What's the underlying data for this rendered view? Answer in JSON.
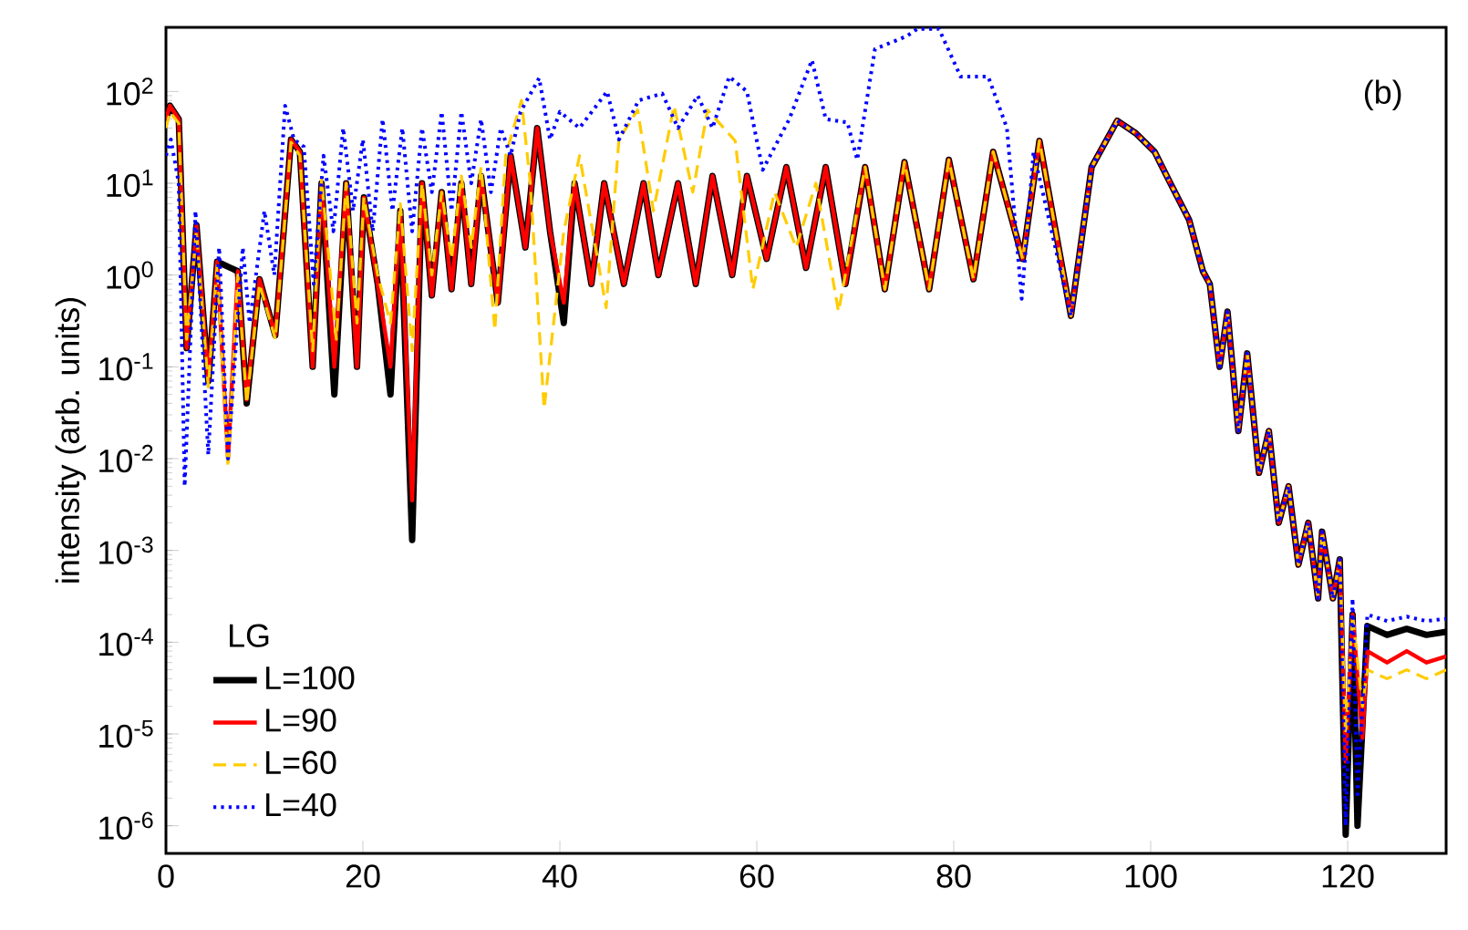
{
  "chart_data": {
    "type": "line",
    "ylabel": "intensity (arb. units)",
    "legend_title": "LG",
    "legend": "bottom left",
    "log": "y",
    "xlim": [
      0,
      130
    ],
    "xticks": [
      0,
      20,
      40,
      60,
      80,
      100,
      120
    ],
    "ylim": [
      5e-07,
      500
    ],
    "yticks": [
      {
        "value": 1e-06,
        "label": "10$^{-6}$"
      },
      {
        "value": 1e-05,
        "label": "10$^{-5}$"
      },
      {
        "value": 0.0001,
        "label": "10$^{-4}$"
      },
      {
        "value": 0.001,
        "label": "10$^{-3}$"
      },
      {
        "value": 0.01,
        "label": "10$^{-2}$"
      },
      {
        "value": 0.1,
        "label": "10$^{-1}$"
      },
      {
        "value": 1,
        "label": "10$^{0}$"
      },
      {
        "value": 10,
        "label": "10$^{1}$"
      },
      {
        "value": 100,
        "label": "10$^{2}$"
      }
    ],
    "annotations": [
      "(b)"
    ],
    "series": [
      {
        "name": "L=100",
        "color": "#000000",
        "line_style": "solid",
        "x": [
          0,
          0.4,
          1.3,
          2.1,
          3.1,
          4.3,
          5.2,
          6.3,
          7.3,
          8.2,
          9.5,
          11.1,
          12.7,
          13.6,
          14.9,
          15.8,
          17.1,
          18.3,
          19.4,
          20.1,
          21.5,
          22.8,
          23.8,
          25,
          26,
          27,
          28,
          29,
          30,
          31,
          32,
          33.7,
          35,
          36.5,
          37.7,
          39,
          40.4,
          41.5,
          43.2,
          44.5,
          46.5,
          48.5,
          50,
          52,
          53.8,
          55.5,
          57.5,
          59,
          61,
          63,
          65,
          67,
          69,
          71,
          73,
          75,
          77.5,
          79.5,
          82,
          84,
          87,
          88.7,
          91.9,
          94,
          96.6,
          98.5,
          100.4,
          102,
          103.9,
          105.3,
          106,
          107,
          107.8,
          108.9,
          109.8,
          111,
          112,
          113,
          114,
          115,
          116,
          117,
          117.4,
          118.5,
          119.2,
          119.8,
          120.5,
          121,
          122,
          124,
          126,
          128,
          130
        ],
        "values": [
          50,
          70,
          50,
          0.16,
          3.5,
          0.07,
          1.4,
          null,
          1.1,
          0.04,
          0.9,
          0.22,
          30,
          22,
          0.1,
          10,
          0.05,
          10,
          0.1,
          7,
          0.8,
          0.05,
          5,
          0.0013,
          10,
          0.6,
          8,
          0.7,
          10,
          0.8,
          12,
          0.5,
          20,
          2,
          40,
          3,
          0.3,
          10,
          0.8,
          10,
          0.8,
          10,
          1,
          10,
          0.8,
          12,
          1,
          12,
          1.5,
          15,
          1.2,
          15,
          0.8,
          15,
          0.7,
          17,
          0.7,
          18,
          0.9,
          22,
          1.5,
          29,
          0.36,
          15,
          48,
          35,
          22,
          10,
          4,
          1.1,
          0.8,
          0.1,
          0.4,
          0.02,
          0.14,
          0.007,
          0.02,
          0.002,
          0.005,
          0.0007,
          0.002,
          0.0003,
          0.0016,
          0.0003,
          0.0008,
          8e-07,
          0.0002,
          1e-06,
          0.00015,
          0.00012,
          0.00014,
          0.00012,
          0.00013
        ]
      },
      {
        "name": "L=90",
        "color": "#ff0000",
        "line_style": "solid",
        "x": [
          0,
          0.4,
          1.3,
          2.1,
          3.1,
          4.3,
          5.2,
          6.3,
          7.3,
          8.2,
          9.5,
          11.1,
          12.7,
          13.6,
          14.9,
          15.8,
          17.1,
          18.3,
          19.4,
          20.1,
          21.5,
          22.8,
          23.8,
          25,
          26,
          27,
          28,
          29,
          30,
          31,
          32,
          33.7,
          35,
          36.5,
          37.7,
          39,
          40.4,
          41.5,
          43.2,
          44.5,
          46.5,
          48.5,
          50,
          52,
          53.8,
          55.5,
          57.5,
          59,
          61,
          63,
          65,
          67,
          69,
          71,
          73,
          75,
          77.5,
          79.5,
          82,
          84,
          87,
          88.7,
          91.9,
          94,
          96.6,
          98.5,
          100.4,
          102,
          103.9,
          105.3,
          106,
          107,
          107.8,
          108.9,
          109.8,
          111,
          112,
          113,
          114,
          115,
          116,
          117,
          117.4,
          118.5,
          119.2,
          119.8,
          120.5,
          121.5,
          122,
          124,
          126,
          128,
          130
        ],
        "values": [
          50,
          70,
          50,
          0.16,
          3.5,
          0.07,
          1.4,
          0.01,
          1.1,
          0.044,
          0.9,
          0.22,
          30,
          22,
          0.1,
          10,
          0.1,
          10,
          0.1,
          7,
          0.8,
          0.1,
          5,
          0.0035,
          10,
          0.6,
          8,
          0.7,
          10,
          0.8,
          12,
          0.5,
          20,
          2,
          40,
          3,
          0.5,
          10,
          0.8,
          10,
          0.8,
          10,
          1,
          10,
          0.8,
          12,
          1,
          12,
          1.5,
          15,
          1.2,
          15,
          0.8,
          15,
          0.7,
          17,
          0.7,
          18,
          0.9,
          22,
          1.5,
          29,
          0.36,
          15,
          48,
          35,
          22,
          10,
          4,
          1.1,
          0.8,
          0.1,
          0.4,
          0.02,
          0.14,
          0.007,
          0.02,
          0.002,
          0.005,
          0.0007,
          0.002,
          0.0003,
          0.0016,
          0.0003,
          0.0008,
          5e-06,
          0.0002,
          9e-06,
          8e-05,
          6e-05,
          8e-05,
          6e-05,
          7e-05
        ]
      },
      {
        "name": "L=60",
        "color": "#ffcc00",
        "line_style": "dashed",
        "x": [
          0,
          0.4,
          1.3,
          2.1,
          3.1,
          4.3,
          5.2,
          6.3,
          7.3,
          8.2,
          9.5,
          11.1,
          12.7,
          13.6,
          14.9,
          15.8,
          17.3,
          18.3,
          19.4,
          20.1,
          21.5,
          22.8,
          23.8,
          25,
          26,
          27,
          28,
          29,
          30,
          31,
          32,
          33.4,
          34.5,
          36.1,
          37,
          38.4,
          40.4,
          42,
          44.7,
          46,
          47.9,
          49.5,
          51.6,
          53.5,
          55,
          57.8,
          59.6,
          61.8,
          64,
          66,
          68.3,
          71,
          73,
          75,
          77.5,
          79.5,
          82,
          84,
          87,
          88.7,
          91.9,
          94,
          96.6,
          98.5,
          100.4,
          102,
          103.9,
          105.3,
          106,
          107,
          107.8,
          108.9,
          109.8,
          111,
          112,
          113,
          114,
          115,
          116,
          117,
          117.4,
          118.5,
          119.2,
          119.8,
          120.5,
          121.5,
          122,
          124,
          126,
          128,
          130
        ],
        "values": [
          40,
          60,
          45,
          0.2,
          3,
          0.06,
          1.3,
          0.008,
          1,
          0.04,
          0.8,
          0.2,
          28,
          20,
          0.15,
          11,
          0.2,
          10,
          0.3,
          7,
          1,
          0.3,
          6,
          0.15,
          10,
          1,
          8,
          1.5,
          12,
          2,
          15,
          0.25,
          20,
          80,
          10,
          0.035,
          3,
          20,
          0.44,
          30,
          63,
          5,
          70,
          8,
          63,
          29,
          0.7,
          8,
          2,
          10,
          0.4,
          15,
          0.7,
          17,
          0.7,
          18,
          0.9,
          22,
          1.5,
          29,
          0.36,
          15,
          48,
          35,
          22,
          10,
          4,
          1.1,
          0.8,
          0.1,
          0.4,
          0.02,
          0.14,
          0.007,
          0.02,
          0.002,
          0.005,
          0.0007,
          0.002,
          0.0003,
          0.0016,
          0.0003,
          0.0008,
          1e-05,
          0.0002,
          2e-05,
          5e-05,
          4e-05,
          5e-05,
          4e-05,
          5e-05
        ]
      },
      {
        "name": "L=40",
        "color": "#0000ff",
        "line_style": "dotted",
        "x": [
          0,
          0.5,
          1.3,
          1.9,
          3,
          4.3,
          5.4,
          6.3,
          7.8,
          8.5,
          10,
          11,
          12.1,
          13,
          14,
          15,
          16,
          17,
          18,
          19,
          20,
          21,
          22,
          23,
          24,
          25,
          26,
          27,
          28,
          29,
          30,
          31,
          32,
          33,
          34,
          35,
          36,
          37.9,
          39,
          40,
          42,
          44.8,
          46,
          48,
          50.4,
          52,
          54,
          55.5,
          57.2,
          59,
          60.6,
          63.3,
          65.6,
          67,
          69.2,
          70.2,
          72,
          75.2,
          76.3,
          78.5,
          80.7,
          83.5,
          85.4,
          86.9,
          88.1,
          91.9,
          94,
          96.6,
          98.5,
          100.4,
          102,
          103.9,
          105.3,
          106,
          107,
          107.8,
          108.9,
          109.8,
          111,
          112,
          113,
          114,
          115,
          116,
          117,
          117.4,
          118.5,
          119.2,
          119.8,
          120.5,
          121,
          122,
          124,
          126,
          128,
          130
        ],
        "values": [
          20,
          30,
          10,
          0.005,
          5,
          0.011,
          2,
          0.01,
          2,
          0.3,
          5,
          1,
          70,
          30,
          25,
          0.8,
          20,
          3,
          40,
          5,
          30,
          3,
          50,
          5,
          40,
          3,
          40,
          8,
          60,
          5,
          60,
          10,
          50,
          8,
          40,
          20,
          60,
          140,
          30,
          60,
          40,
          100,
          30,
          80,
          95,
          40,
          90,
          40,
          145,
          100,
          14,
          50,
          220,
          50,
          46,
          18,
          290,
          400,
          480,
          480,
          145,
          145,
          40,
          0.55,
          22,
          0.36,
          15,
          48,
          35,
          22,
          10,
          4,
          1.1,
          0.8,
          0.1,
          0.4,
          0.02,
          0.14,
          0.007,
          0.02,
          0.002,
          0.005,
          0.0007,
          0.002,
          0.0003,
          0.0016,
          0.0003,
          0.0008,
          1e-06,
          0.0003,
          2e-06,
          0.0002,
          0.00017,
          0.00019,
          0.00017,
          0.00018
        ]
      }
    ]
  }
}
